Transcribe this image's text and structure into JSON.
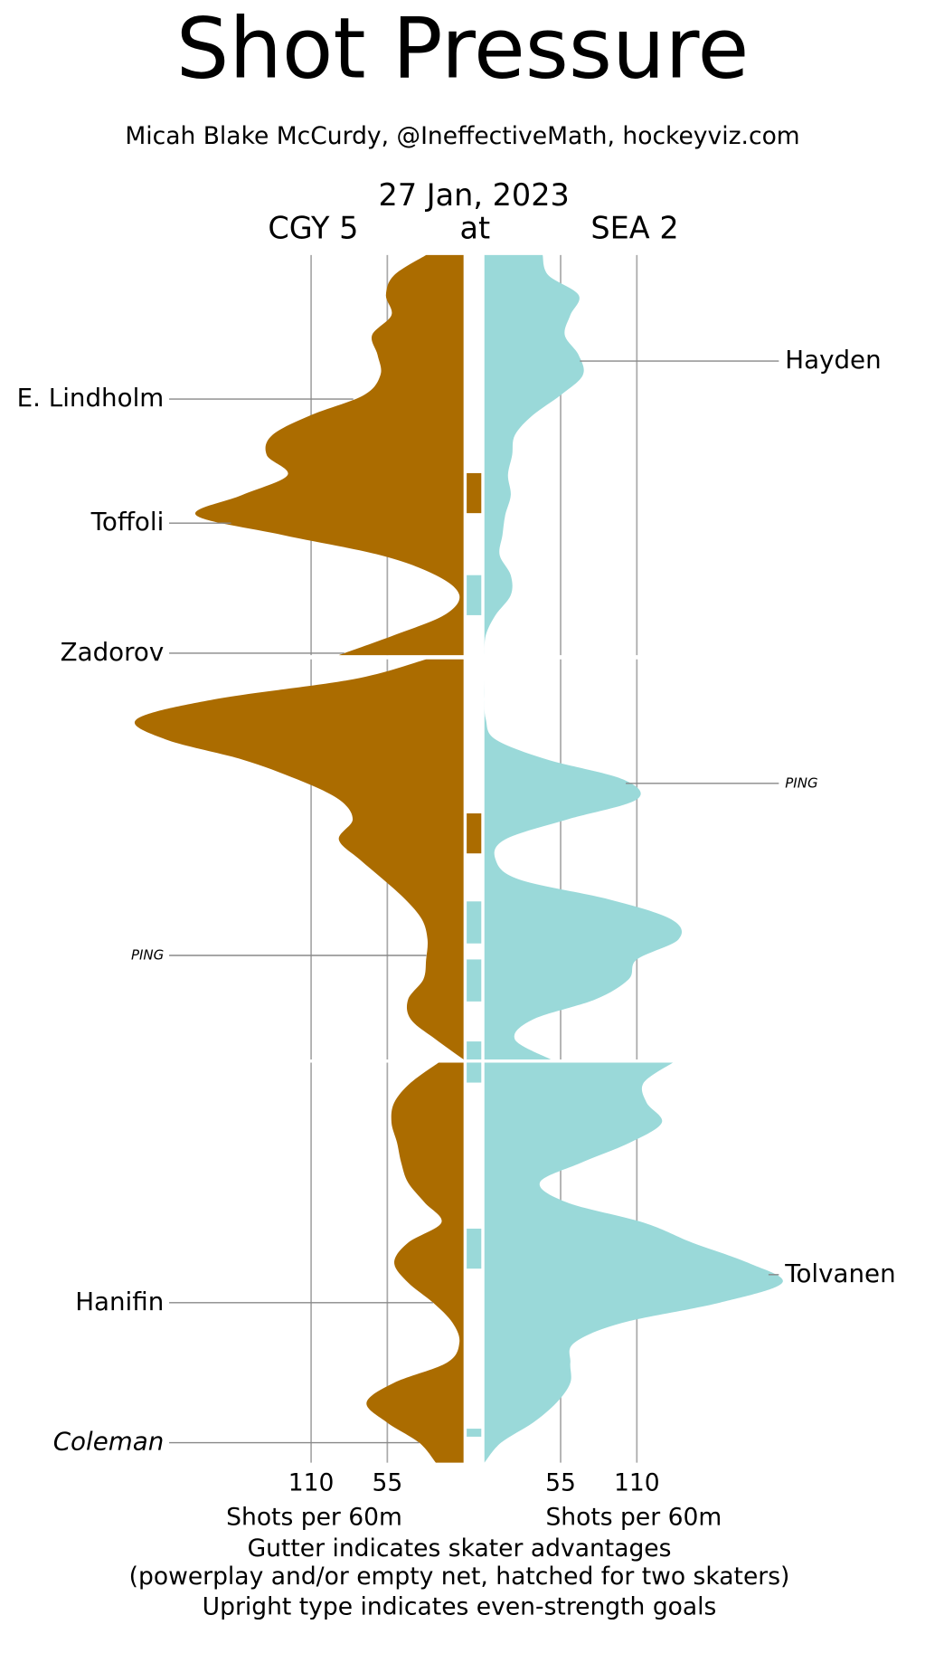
{
  "chart_data": {
    "type": "shot_pressure",
    "title": "Shot Pressure",
    "subtitle": "Micah Blake McCurdy, @IneffectiveMath, hockeyviz.com",
    "date": "27 Jan, 2023",
    "separator": "at",
    "xlabel": "Shots per 60m",
    "notes": [
      "Gutter indicates skater advantages",
      "(powerplay and/or empty net, hatched for two skaters)",
      "Upright type indicates even-strength goals"
    ],
    "xlim": [
      0,
      220
    ],
    "xticks": [
      55,
      110
    ],
    "grid": true,
    "teams": [
      {
        "name": "CGY 5",
        "color": "#ab6c00",
        "side": "left"
      },
      {
        "name": "SEA 2",
        "color": "#9ad9d9",
        "side": "right"
      }
    ],
    "periods": [
      {
        "x": [
          0,
          1,
          2,
          3,
          4,
          5,
          6,
          7,
          8,
          9,
          10,
          11,
          12,
          13,
          14,
          15,
          16,
          17,
          18,
          19,
          20
        ],
        "values": [
          [
            27,
            50,
            56,
            52,
            66,
            62,
            60,
            72,
            110,
            138,
            142,
            127,
            160,
            193,
            130,
            60,
            20,
            3,
            14,
            50,
            90
          ],
          [
            42,
            46,
            68,
            62,
            58,
            68,
            71,
            55,
            35,
            22,
            20,
            17,
            19,
            15,
            13,
            11,
            19,
            19,
            8,
            1,
            0
          ]
        ]
      },
      {
        "x": [
          20,
          21,
          22,
          23,
          24,
          25,
          26,
          27,
          28,
          29,
          30,
          31,
          32,
          33,
          34,
          35,
          36,
          37,
          38,
          39,
          40
        ],
        "values": [
          [
            27,
            80,
            180,
            236,
            215,
            160,
            120,
            90,
            80,
            90,
            75,
            58,
            42,
            30,
            26,
            27,
            29,
            40,
            38,
            20,
            0
          ],
          [
            0,
            0,
            0,
            1,
            8,
            45,
            100,
            110,
            60,
            15,
            8,
            25,
            90,
            135,
            140,
            110,
            104,
            80,
            35,
            22,
            48
          ]
        ]
      },
      {
        "x": [
          40,
          41,
          42,
          43,
          44,
          45,
          46,
          47,
          48,
          49,
          50,
          51,
          52,
          53,
          54,
          55,
          56,
          57,
          58,
          59,
          60
        ],
        "values": [
          [
            18,
            38,
            50,
            52,
            48,
            45,
            40,
            28,
            16,
            40,
            50,
            40,
            22,
            8,
            3,
            12,
            50,
            70,
            55,
            32,
            20
          ],
          [
            136,
            115,
            117,
            128,
            105,
            70,
            40,
            60,
            115,
            150,
            190,
            215,
            170,
            100,
            65,
            62,
            62,
            52,
            35,
            12,
            0
          ]
        ]
      }
    ],
    "gutter": [
      {
        "team": 0,
        "start": 10.9,
        "end": 12.9
      },
      {
        "team": 1,
        "start": 16.0,
        "end": 18.0
      },
      {
        "team": 0,
        "start": 27.7,
        "end": 29.7
      },
      {
        "team": 1,
        "start": 32.1,
        "end": 34.2
      },
      {
        "team": 1,
        "start": 35.0,
        "end": 37.1
      },
      {
        "team": 1,
        "start": 39.1,
        "end": 40.0
      },
      {
        "team": 1,
        "start": 40.0,
        "end": 41.0
      },
      {
        "team": 1,
        "start": 48.3,
        "end": 50.3
      },
      {
        "team": 1,
        "start": 58.3,
        "end": 58.7
      }
    ],
    "goals": [
      {
        "team": 0,
        "label": "E. Lindholm",
        "minute": 7.2,
        "even_strength": true
      },
      {
        "team": 0,
        "label": "Toffoli",
        "minute": 13.4,
        "even_strength": true
      },
      {
        "team": 0,
        "label": "Zadorov",
        "minute": 19.9,
        "even_strength": true
      },
      {
        "team": 0,
        "label": "PING",
        "minute": 34.8,
        "even_strength": false,
        "ping": true
      },
      {
        "team": 0,
        "label": "Hanifin",
        "minute": 52.0,
        "even_strength": true
      },
      {
        "team": 0,
        "label": "Coleman",
        "minute": 59.0,
        "even_strength": false
      },
      {
        "team": 1,
        "label": "Hayden",
        "minute": 5.3,
        "even_strength": true
      },
      {
        "team": 1,
        "label": "PING",
        "minute": 26.2,
        "even_strength": false,
        "ping": true
      },
      {
        "team": 1,
        "label": "Tolvanen",
        "minute": 50.6,
        "even_strength": true
      }
    ]
  }
}
